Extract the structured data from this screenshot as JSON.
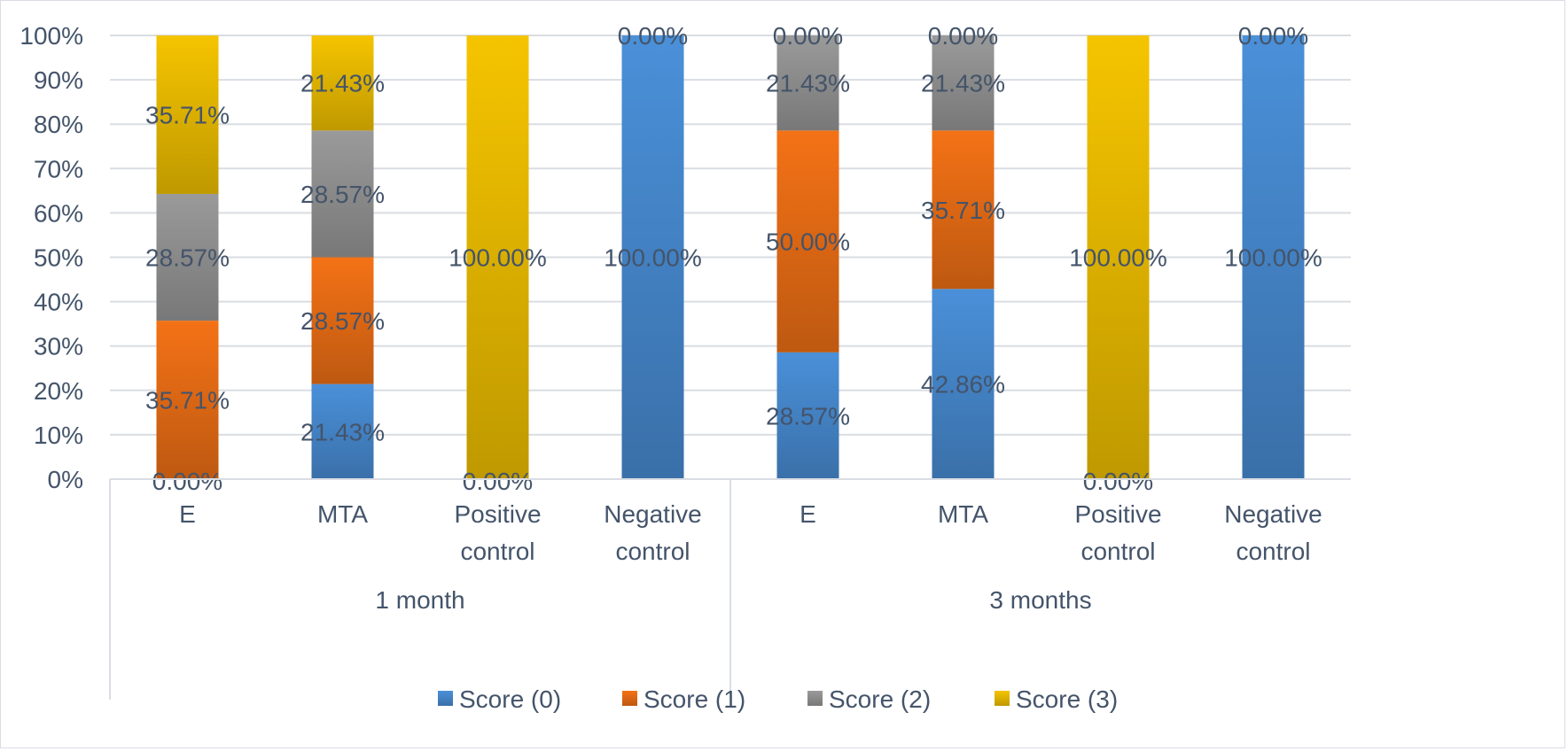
{
  "chart_data": {
    "type": "bar",
    "stacked": true,
    "title": "",
    "xlabel": "",
    "ylabel": "",
    "ylim": [
      0,
      100
    ],
    "y_ticks": [
      "0%",
      "10%",
      "20%",
      "30%",
      "40%",
      "50%",
      "60%",
      "70%",
      "80%",
      "90%",
      "100%"
    ],
    "groups": [
      {
        "label": "1 month",
        "categories": [
          "E",
          "MTA",
          "Positive control",
          "Negative control"
        ]
      },
      {
        "label": "3 months",
        "categories": [
          "E",
          "MTA",
          "Positive control",
          "Negative control"
        ]
      }
    ],
    "categories": [
      "E",
      "MTA",
      "Positive control",
      "Negative control",
      "E",
      "MTA",
      "Positive control",
      "Negative control"
    ],
    "series": [
      {
        "name": "Score (0)",
        "color": "#4a90d9",
        "values": [
          0,
          21.43,
          0,
          100,
          28.57,
          42.86,
          0,
          100
        ]
      },
      {
        "name": "Score (1)",
        "color": "#f47216",
        "values": [
          35.71,
          28.57,
          0,
          0,
          50,
          35.71,
          0,
          0
        ]
      },
      {
        "name": "Score (2)",
        "color": "#9a9a9a",
        "values": [
          28.57,
          28.57,
          0,
          0,
          21.43,
          21.43,
          0,
          0
        ]
      },
      {
        "name": "Score (3)",
        "color": "#f5c400",
        "values": [
          35.71,
          21.43,
          100,
          0,
          0,
          0,
          100,
          0
        ]
      }
    ],
    "data_labels": [
      {
        "bar": 0,
        "series": 0,
        "text": "0.00%"
      },
      {
        "bar": 0,
        "series": 1,
        "text": "35.71%"
      },
      {
        "bar": 0,
        "series": 2,
        "text": "28.57%"
      },
      {
        "bar": 0,
        "series": 3,
        "text": "35.71%"
      },
      {
        "bar": 1,
        "series": 0,
        "text": "21.43%"
      },
      {
        "bar": 1,
        "series": 1,
        "text": "28.57%"
      },
      {
        "bar": 1,
        "series": 2,
        "text": "28.57%"
      },
      {
        "bar": 1,
        "series": 3,
        "text": "21.43%"
      },
      {
        "bar": 2,
        "series": 0,
        "text": "0.00%"
      },
      {
        "bar": 2,
        "series": 3,
        "text": "100.00%"
      },
      {
        "bar": 3,
        "series": 0,
        "text": "100.00%"
      },
      {
        "bar": 3,
        "series": 3,
        "text": "0.00%"
      },
      {
        "bar": 4,
        "series": 0,
        "text": "28.57%"
      },
      {
        "bar": 4,
        "series": 1,
        "text": "50.00%"
      },
      {
        "bar": 4,
        "series": 2,
        "text": "21.43%"
      },
      {
        "bar": 4,
        "series": 3,
        "text": "0.00%"
      },
      {
        "bar": 5,
        "series": 0,
        "text": "42.86%"
      },
      {
        "bar": 5,
        "series": 1,
        "text": "35.71%"
      },
      {
        "bar": 5,
        "series": 2,
        "text": "21.43%"
      },
      {
        "bar": 5,
        "series": 3,
        "text": "0.00%"
      },
      {
        "bar": 6,
        "series": 0,
        "text": "0.00%"
      },
      {
        "bar": 6,
        "series": 3,
        "text": "100.00%"
      },
      {
        "bar": 7,
        "series": 0,
        "text": "100.00%"
      },
      {
        "bar": 7,
        "series": 3,
        "text": "0.00%"
      }
    ],
    "legend": {
      "position": "bottom",
      "entries": [
        "Score (0)",
        "Score (1)",
        "Score (2)",
        "Score (3)"
      ]
    },
    "grid": true
  }
}
